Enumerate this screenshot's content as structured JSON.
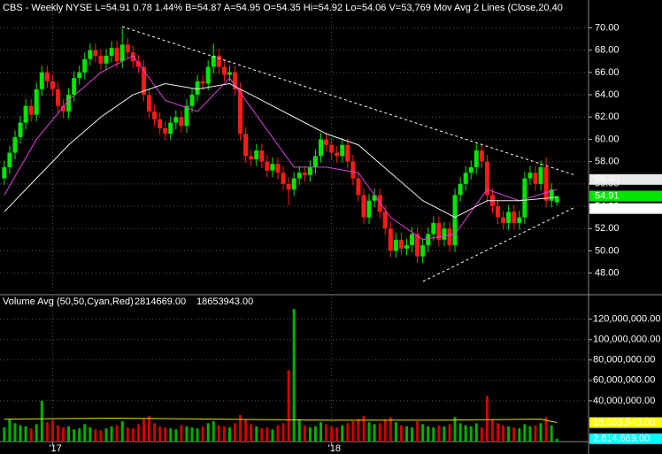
{
  "chart_data": [
    {
      "type": "candlestick",
      "title": "CBS - Weekly  NYSE  L=54.91  0.78  1.44%  B=54.87  A=54.95  O=54.35  Hi=54.92  Lo=54.06  V=53,769  Mov Avg 2 Lines (Close,20,40",
      "up_color": "#00e600",
      "down_color": "#ff1a1a",
      "open": [
        56.5,
        57.5,
        58.8,
        60.2,
        61.5,
        63.0,
        62.2,
        64.5,
        66.0,
        65.2,
        64.5,
        63.0,
        62.5,
        64.0,
        65.5,
        66.0,
        67.2,
        68.0,
        67.5,
        66.8,
        67.5,
        68.2,
        67.0,
        68.5,
        67.8,
        67.0,
        66.5,
        64.0,
        62.5,
        61.8,
        61.0,
        60.5,
        61.5,
        62.0,
        61.2,
        63.0,
        64.0,
        65.2,
        65.0,
        66.5,
        67.5,
        66.5,
        65.8,
        66.0,
        64.5,
        60.5,
        58.5,
        58.2,
        59.0,
        58.0,
        57.2,
        57.8,
        57.0,
        56.0,
        55.5,
        56.5,
        57.0,
        56.8,
        57.5,
        58.5,
        60.0,
        59.5,
        58.8,
        58.5,
        59.5,
        58.0,
        56.5,
        55.0,
        53.0,
        54.5,
        55.0,
        53.5,
        52.0,
        50.0,
        51.0,
        50.2,
        50.5,
        51.5,
        49.5,
        50.5,
        51.5,
        52.5,
        51.0,
        52.0,
        50.5,
        55.0,
        56.0,
        57.0,
        57.5,
        59.0,
        58.0,
        55.0,
        54.0,
        53.0,
        52.5,
        53.5,
        52.5,
        53.0,
        56.5,
        57.0,
        56.0,
        57.5,
        54.5,
        54.35
      ],
      "high": [
        58.1,
        59.4,
        60.8,
        62.1,
        63.6,
        63.6,
        65.1,
        66.6,
        66.6,
        65.8,
        65.1,
        63.6,
        64.6,
        66.1,
        66.6,
        67.8,
        68.6,
        68.6,
        68.1,
        68.1,
        68.8,
        68.8,
        70.0,
        69.1,
        68.4,
        67.6,
        67.1,
        64.6,
        63.1,
        62.4,
        61.6,
        62.1,
        62.6,
        62.6,
        63.6,
        64.6,
        65.8,
        65.8,
        67.1,
        68.6,
        68.1,
        67.1,
        66.6,
        66.6,
        65.1,
        61.1,
        59.1,
        59.6,
        59.6,
        58.6,
        58.4,
        58.4,
        57.6,
        56.6,
        57.1,
        57.6,
        57.6,
        58.1,
        59.1,
        60.6,
        60.6,
        60.1,
        59.4,
        60.1,
        60.1,
        58.6,
        57.1,
        55.6,
        55.1,
        55.6,
        55.6,
        54.1,
        52.6,
        51.6,
        51.6,
        51.1,
        52.1,
        52.1,
        51.1,
        52.1,
        53.1,
        53.1,
        52.6,
        52.6,
        55.6,
        56.6,
        57.6,
        58.1,
        59.6,
        59.6,
        58.6,
        55.6,
        54.6,
        53.6,
        54.1,
        54.1,
        53.6,
        57.1,
        57.6,
        57.6,
        58.1,
        58.4,
        56.1,
        54.92
      ],
      "low": [
        55.9,
        56.9,
        58.2,
        59.6,
        60.9,
        61.6,
        61.6,
        63.9,
        64.6,
        63.9,
        62.4,
        61.9,
        61.9,
        63.4,
        64.9,
        65.4,
        66.6,
        66.9,
        66.2,
        66.2,
        66.9,
        66.4,
        66.4,
        67.2,
        66.4,
        65.9,
        63.4,
        61.9,
        61.2,
        60.4,
        59.9,
        59.9,
        60.9,
        60.6,
        60.6,
        62.4,
        63.4,
        64.4,
        64.4,
        65.9,
        65.9,
        65.2,
        65.2,
        63.9,
        59.9,
        57.9,
        57.6,
        57.6,
        57.4,
        56.6,
        56.6,
        56.4,
        55.4,
        54.1,
        54.9,
        55.9,
        56.2,
        56.2,
        56.9,
        57.9,
        58.9,
        58.2,
        57.9,
        57.9,
        57.4,
        55.9,
        54.4,
        52.4,
        52.4,
        53.9,
        52.9,
        51.4,
        49.4,
        49.4,
        49.6,
        49.6,
        49.9,
        48.9,
        48.9,
        49.9,
        50.9,
        50.4,
        50.4,
        49.9,
        49.9,
        54.4,
        55.4,
        56.4,
        56.9,
        57.4,
        54.4,
        53.4,
        52.4,
        51.9,
        51.9,
        51.9,
        51.9,
        52.4,
        55.9,
        55.4,
        55.4,
        53.9,
        53.9,
        54.06
      ],
      "close": [
        57.5,
        58.8,
        60.2,
        61.5,
        63.0,
        62.2,
        64.5,
        66.0,
        65.2,
        64.5,
        63.0,
        62.5,
        64.0,
        65.5,
        66.0,
        67.2,
        68.0,
        67.5,
        66.8,
        67.5,
        68.2,
        67.0,
        68.5,
        67.8,
        67.0,
        66.5,
        64.0,
        62.5,
        61.8,
        61.0,
        60.5,
        61.5,
        62.0,
        61.2,
        63.0,
        64.0,
        65.2,
        65.0,
        66.5,
        67.5,
        66.5,
        65.8,
        66.0,
        64.5,
        60.5,
        58.5,
        58.2,
        59.0,
        58.0,
        57.2,
        57.8,
        57.0,
        56.0,
        55.5,
        56.5,
        57.0,
        56.8,
        57.5,
        58.5,
        60.0,
        59.5,
        58.8,
        58.5,
        59.5,
        58.0,
        56.5,
        55.0,
        53.0,
        54.5,
        55.0,
        53.5,
        52.0,
        50.0,
        51.0,
        50.2,
        50.5,
        51.5,
        49.5,
        50.5,
        51.5,
        52.5,
        51.0,
        52.0,
        50.5,
        55.0,
        56.0,
        57.0,
        57.5,
        59.0,
        58.0,
        55.0,
        54.0,
        53.0,
        52.5,
        53.5,
        52.5,
        53.0,
        56.5,
        57.0,
        56.0,
        57.5,
        54.5,
        55.5,
        54.91
      ],
      "lines": [
        {
          "color": "#e040e0",
          "x": [
            0,
            6,
            12,
            18,
            24,
            30,
            36,
            42,
            48,
            54,
            60,
            66,
            72,
            78,
            84,
            90,
            96,
            103
          ],
          "values": [
            55.0,
            60.0,
            63.5,
            66.0,
            67.5,
            63.5,
            62.5,
            65.5,
            61.5,
            57.5,
            57.5,
            57.0,
            53.0,
            51.0,
            51.5,
            55.5,
            54.5,
            55.5
          ]
        },
        {
          "color": "#f0f0f0",
          "x": [
            0,
            6,
            12,
            18,
            24,
            30,
            36,
            42,
            48,
            54,
            60,
            66,
            72,
            78,
            84,
            90,
            96,
            103
          ],
          "values": [
            53.5,
            56.5,
            59.5,
            62.0,
            64.0,
            65.0,
            64.5,
            65.0,
            63.5,
            62.0,
            60.5,
            59.5,
            57.0,
            54.5,
            53.0,
            54.5,
            54.5,
            54.8
          ]
        }
      ],
      "xlim": [
        -0.8,
        108.9
      ],
      "xticks": [
        {
          "value": 9,
          "label": "'17"
        },
        {
          "value": 61,
          "label": "'18"
        }
      ],
      "ylim": [
        46.3,
        72.5
      ],
      "yticks": [
        {
          "value": 48,
          "label": "48.00"
        },
        {
          "value": 50,
          "label": "50.00"
        },
        {
          "value": 52,
          "label": "52.00"
        },
        {
          "value": 54,
          "label": "54.00"
        },
        {
          "value": 56,
          "label": "56.00"
        },
        {
          "value": 58,
          "label": "58.00"
        },
        {
          "value": 60,
          "label": "60.00"
        },
        {
          "value": 62,
          "label": "62.00"
        },
        {
          "value": 64,
          "label": "64.00"
        },
        {
          "value": 66,
          "label": "66.00"
        },
        {
          "value": 68,
          "label": "68.00"
        },
        {
          "value": 70,
          "label": "70.00"
        }
      ],
      "grid": true,
      "price_tags": [
        {
          "value": 56.4,
          "label": "56.40",
          "color": "#e8e8e8"
        },
        {
          "value": 54.91,
          "label": "54.91",
          "color": "#00e600"
        },
        {
          "value": 53.79,
          "label": "53.79",
          "color": "#ffffff"
        }
      ]
    },
    {
      "type": "bar",
      "title": "Volume Avg (50,50,Cyan,Red)",
      "stats": [
        {
          "value": 2814669,
          "label": "2814669.00",
          "color": "#ffff66"
        },
        {
          "value": 18653943,
          "label": "18653943.00",
          "color": "#ffff00"
        }
      ],
      "up_color": "#00b000",
      "down_color": "#d00000",
      "values": [
        14000000,
        22000000,
        18000000,
        16000000,
        15000000,
        13000000,
        17000000,
        40000000,
        19000000,
        21000000,
        16000000,
        14000000,
        15000000,
        12000000,
        13000000,
        17000000,
        14000000,
        12000000,
        11000000,
        13000000,
        15000000,
        16000000,
        20000000,
        14000000,
        13000000,
        17000000,
        22000000,
        25000000,
        18000000,
        15000000,
        14000000,
        13000000,
        12000000,
        16000000,
        15000000,
        14000000,
        13000000,
        15000000,
        18000000,
        20000000,
        16000000,
        15000000,
        14000000,
        18000000,
        26000000,
        22000000,
        17000000,
        15000000,
        13000000,
        14000000,
        12000000,
        16000000,
        18000000,
        70000000,
        130000000,
        22000000,
        16000000,
        14000000,
        15000000,
        19000000,
        17000000,
        15000000,
        14000000,
        16000000,
        18000000,
        20000000,
        22000000,
        25000000,
        19000000,
        17000000,
        18000000,
        22000000,
        24000000,
        19000000,
        16000000,
        15000000,
        14000000,
        20000000,
        17000000,
        15000000,
        14000000,
        16000000,
        15000000,
        17000000,
        24000000,
        18000000,
        16000000,
        15000000,
        18000000,
        14000000,
        45000000,
        22000000,
        18000000,
        16000000,
        15000000,
        14000000,
        13000000,
        17000000,
        15000000,
        16000000,
        18000000,
        24000000,
        16000000,
        2814669
      ],
      "avg_line": {
        "color": "#e6e600",
        "x": [
          0,
          20,
          40,
          60,
          80,
          100,
          103
        ],
        "values": [
          22000000,
          23000000,
          22000000,
          21000000,
          21000000,
          22000000,
          18653943
        ]
      },
      "ylim": [
        0,
        131000000
      ],
      "yticks": [
        {
          "value": 40000000,
          "label": "40,000,000.00"
        },
        {
          "value": 60000000,
          "label": "60,000,000.00"
        },
        {
          "value": 80000000,
          "label": "80,000,000.00"
        },
        {
          "value": 100000000,
          "label": "100,000,000.00"
        },
        {
          "value": 120000000,
          "label": "120,000,000.00"
        }
      ],
      "value_tags": [
        {
          "value": 18653943,
          "label": "18,653,943.00",
          "color": "#ffff00"
        },
        {
          "value": 2814669,
          "label": "2,814,669.00",
          "color": "#00ffff"
        }
      ]
    }
  ]
}
